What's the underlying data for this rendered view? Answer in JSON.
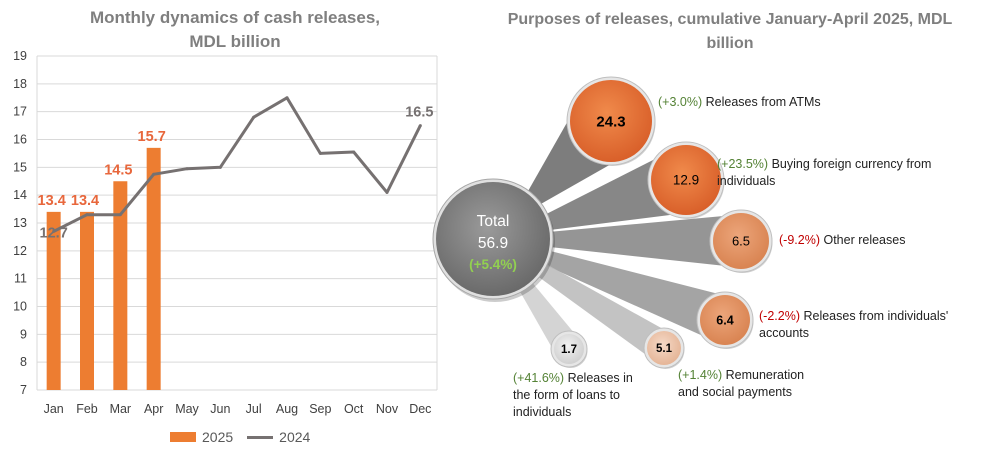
{
  "left_title": "Monthly dynamics of cash releases, MDL billion",
  "right_title": "Purposes of releases, cumulative January-April 2025, MDL billion",
  "legend": {
    "s2025": "2025",
    "s2024": "2024"
  },
  "colors": {
    "bar2025": "#ed7d31",
    "line2024": "#767171",
    "positive": "#548235",
    "negative": "#c00000",
    "total_bubble": "#7f7f7f"
  },
  "chart_data": [
    {
      "type": "bar",
      "title": "Monthly dynamics of cash releases, MDL billion",
      "categories": [
        "Jan",
        "Feb",
        "Mar",
        "Apr",
        "May",
        "Jun",
        "Jul",
        "Aug",
        "Sep",
        "Oct",
        "Nov",
        "Dec"
      ],
      "series": [
        {
          "name": "2025",
          "type": "bar",
          "values": [
            13.4,
            13.4,
            14.5,
            15.7,
            null,
            null,
            null,
            null,
            null,
            null,
            null,
            null
          ]
        },
        {
          "name": "2024",
          "type": "line",
          "values": [
            12.7,
            13.3,
            13.3,
            14.75,
            14.95,
            15.0,
            16.8,
            17.5,
            15.5,
            15.55,
            14.1,
            16.5
          ]
        }
      ],
      "data_labels": {
        "2025": [
          "13.4",
          "13.4",
          "14.5",
          "15.7"
        ],
        "2024_first": "12.7",
        "2024_last": "16.5"
      },
      "yticks": [
        "7",
        "8",
        "9",
        "10",
        "11",
        "12",
        "13",
        "14",
        "15",
        "16",
        "17",
        "18",
        "19"
      ],
      "ylim": [
        7,
        19
      ],
      "grid": true,
      "legend_position": "bottom"
    },
    {
      "type": "bubble",
      "title": "Purposes of releases, cumulative January-April 2025, MDL billion",
      "total": {
        "label": "Total",
        "value": "56.9",
        "change": "(+5.4%)"
      },
      "items": [
        {
          "value": "24.3",
          "change": "(+3.0%)",
          "label": "Releases from ATMs",
          "sign": "pos"
        },
        {
          "value": "12.9",
          "change": "(+23.5%)",
          "label": "Buying foreign currency from individuals",
          "sign": "pos"
        },
        {
          "value": "6.5",
          "change": "(-9.2%)",
          "label": "Other releases",
          "sign": "neg"
        },
        {
          "value": "6.4",
          "change": "(-2.2%)",
          "label": "Releases from individuals' accounts",
          "sign": "neg"
        },
        {
          "value": "5.1",
          "change": "(+1.4%)",
          "label": "Remuneration and social payments",
          "sign": "pos"
        },
        {
          "value": "1.7",
          "change": "(+41.6%)",
          "label": "Releases in the form of loans to individuals",
          "sign": "pos"
        }
      ]
    }
  ]
}
